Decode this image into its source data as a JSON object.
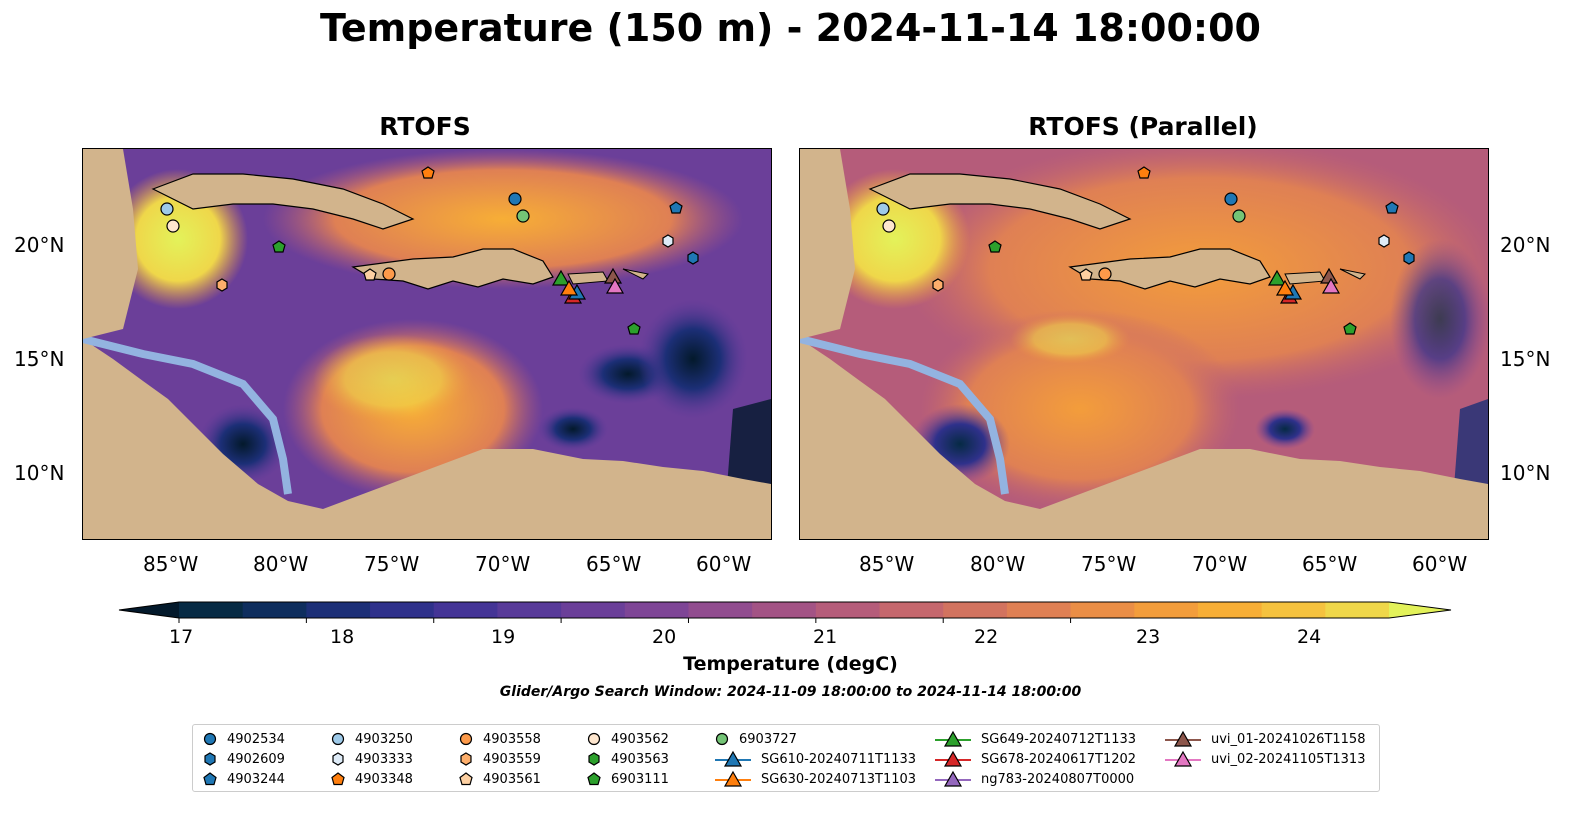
{
  "title": "Temperature (150 m) - 2024-11-14 18:00:00",
  "panels": [
    {
      "title": "RTOFS"
    },
    {
      "title": "RTOFS (Parallel)"
    }
  ],
  "axes": {
    "lat_ticks": [
      "20°N",
      "15°N",
      "10°N"
    ],
    "lon_ticks": [
      "85°W",
      "80°W",
      "75°W",
      "70°W",
      "65°W",
      "60°W"
    ]
  },
  "colorbar": {
    "label": "Temperature (degC)",
    "ticks": [
      "17",
      "18",
      "19",
      "20",
      "21",
      "22",
      "23",
      "24"
    ],
    "range": [
      17,
      24.5
    ],
    "colors": [
      "#03192b",
      "#062a44",
      "#0e2e5e",
      "#1c2f77",
      "#2f318b",
      "#443496",
      "#583a99",
      "#6b3f99",
      "#7e4596",
      "#914c8f",
      "#a35385",
      "#b55c7a",
      "#c5676d",
      "#d2735f",
      "#df8054",
      "#ea8e46",
      "#f39d3b",
      "#f7ae36",
      "#f5c23f",
      "#efd74a",
      "#e3f25a"
    ]
  },
  "search_window": "Glider/Argo Search Window: 2024-11-09 18:00:00 to 2024-11-14 18:00:00",
  "legend": [
    {
      "label": "4902534",
      "marker": "circle",
      "color": "#1f77b4"
    },
    {
      "label": "4902609",
      "marker": "hexagon",
      "color": "#1f77b4"
    },
    {
      "label": "4903244",
      "marker": "pentagon",
      "color": "#1f77b4"
    },
    {
      "label": "4903250",
      "marker": "circle",
      "color": "#9ecae9"
    },
    {
      "label": "4903333",
      "marker": "hexagon",
      "color": "#deebf7"
    },
    {
      "label": "4903348",
      "marker": "pentagon",
      "color": "#ff7f0e"
    },
    {
      "label": "4903558",
      "marker": "circle",
      "color": "#fd9a4a"
    },
    {
      "label": "4903559",
      "marker": "hexagon",
      "color": "#fdae6b"
    },
    {
      "label": "4903561",
      "marker": "pentagon",
      "color": "#fdd0a2"
    },
    {
      "label": "4903562",
      "marker": "circle",
      "color": "#fee6ce"
    },
    {
      "label": "4903563",
      "marker": "hexagon",
      "color": "#2ca02c"
    },
    {
      "label": "6903111",
      "marker": "pentagon",
      "color": "#2ca02c"
    },
    {
      "label": "6903727",
      "marker": "circle",
      "color": "#74c476"
    },
    {
      "label": "SG610-20240711T1133",
      "marker": "triangle",
      "color": "#1f77b4"
    },
    {
      "label": "SG630-20240713T1103",
      "marker": "triangle",
      "color": "#ff7f0e"
    },
    {
      "label": "SG649-20240712T1133",
      "marker": "triangle",
      "color": "#2ca02c"
    },
    {
      "label": "SG678-20240617T1202",
      "marker": "triangle",
      "color": "#d62728"
    },
    {
      "label": "ng783-20240807T0000",
      "marker": "triangle",
      "color": "#9467bd"
    },
    {
      "label": "uvi_01-20241026T1158",
      "marker": "triangle",
      "color": "#8c564b"
    },
    {
      "label": "uvi_02-20241105T1313",
      "marker": "triangle",
      "color": "#e377c2"
    }
  ]
}
